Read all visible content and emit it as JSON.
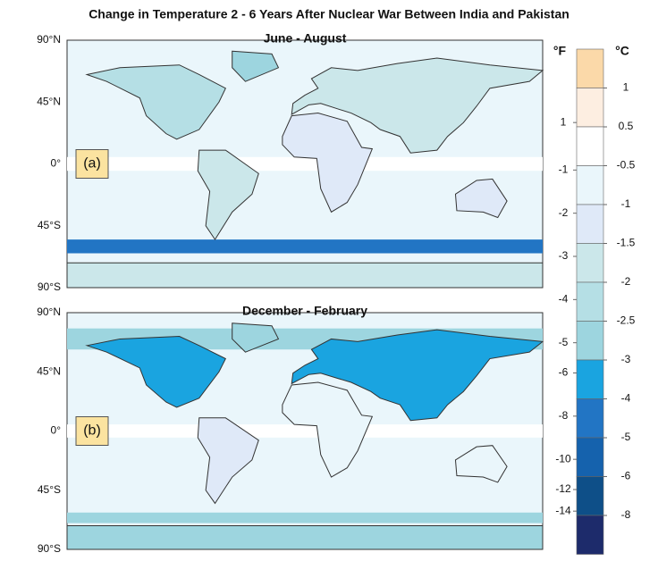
{
  "title": "Change in Temperature  2 - 6 Years After Nuclear War Between India and Pakistan",
  "panels": [
    {
      "title": "June - August",
      "label": "(a)"
    },
    {
      "title": "December - February",
      "label": "(b)"
    }
  ],
  "latitude_labels": [
    "90°N",
    "45°N",
    "0°",
    "45°S",
    "90°S"
  ],
  "colorbar": {
    "fahrenheit_unit": "°F",
    "celsius_unit": "°C",
    "fahrenheit_ticks": [
      1,
      -1,
      -2,
      -3,
      -4,
      -5,
      -6,
      -8,
      -10,
      -12,
      -14
    ],
    "celsius_ticks": [
      1,
      0.5,
      -0.5,
      -1,
      -1.5,
      -2,
      -2.5,
      -3,
      -4,
      -5,
      -6,
      -8
    ],
    "colors": [
      "#fbd9a9",
      "#fdeee1",
      "#ffffff",
      "#eaf6fb",
      "#dfe9f8",
      "#cbe7ea",
      "#b5dfe5",
      "#9dd5df",
      "#1aa4e0",
      "#2275c4",
      "#1562ad",
      "#0e4f88",
      "#1d2b6b"
    ]
  }
}
